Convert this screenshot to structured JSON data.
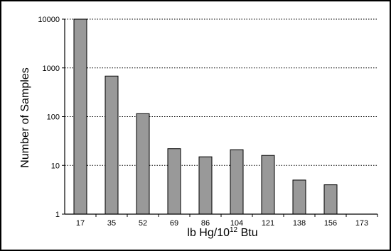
{
  "chart_data": {
    "type": "bar",
    "title": "",
    "xlabel": {
      "prefix": "lb Hg/10",
      "superscript": "12",
      "suffix": " Btu"
    },
    "ylabel": "Number of Samples",
    "y_scale": "log",
    "ylim": [
      1,
      10000
    ],
    "y_ticks": [
      "1",
      "10",
      "100",
      "1000",
      "10000"
    ],
    "grid": "horizontal dotted",
    "categories": [
      "17",
      "35",
      "52",
      "69",
      "86",
      "104",
      "121",
      "138",
      "156",
      "173"
    ],
    "values": [
      10000,
      680,
      115,
      22,
      15,
      21,
      16,
      5,
      4,
      1
    ],
    "colors": {
      "bar": "#999999",
      "bar_stroke": "#000000",
      "grid": "#000000"
    }
  }
}
